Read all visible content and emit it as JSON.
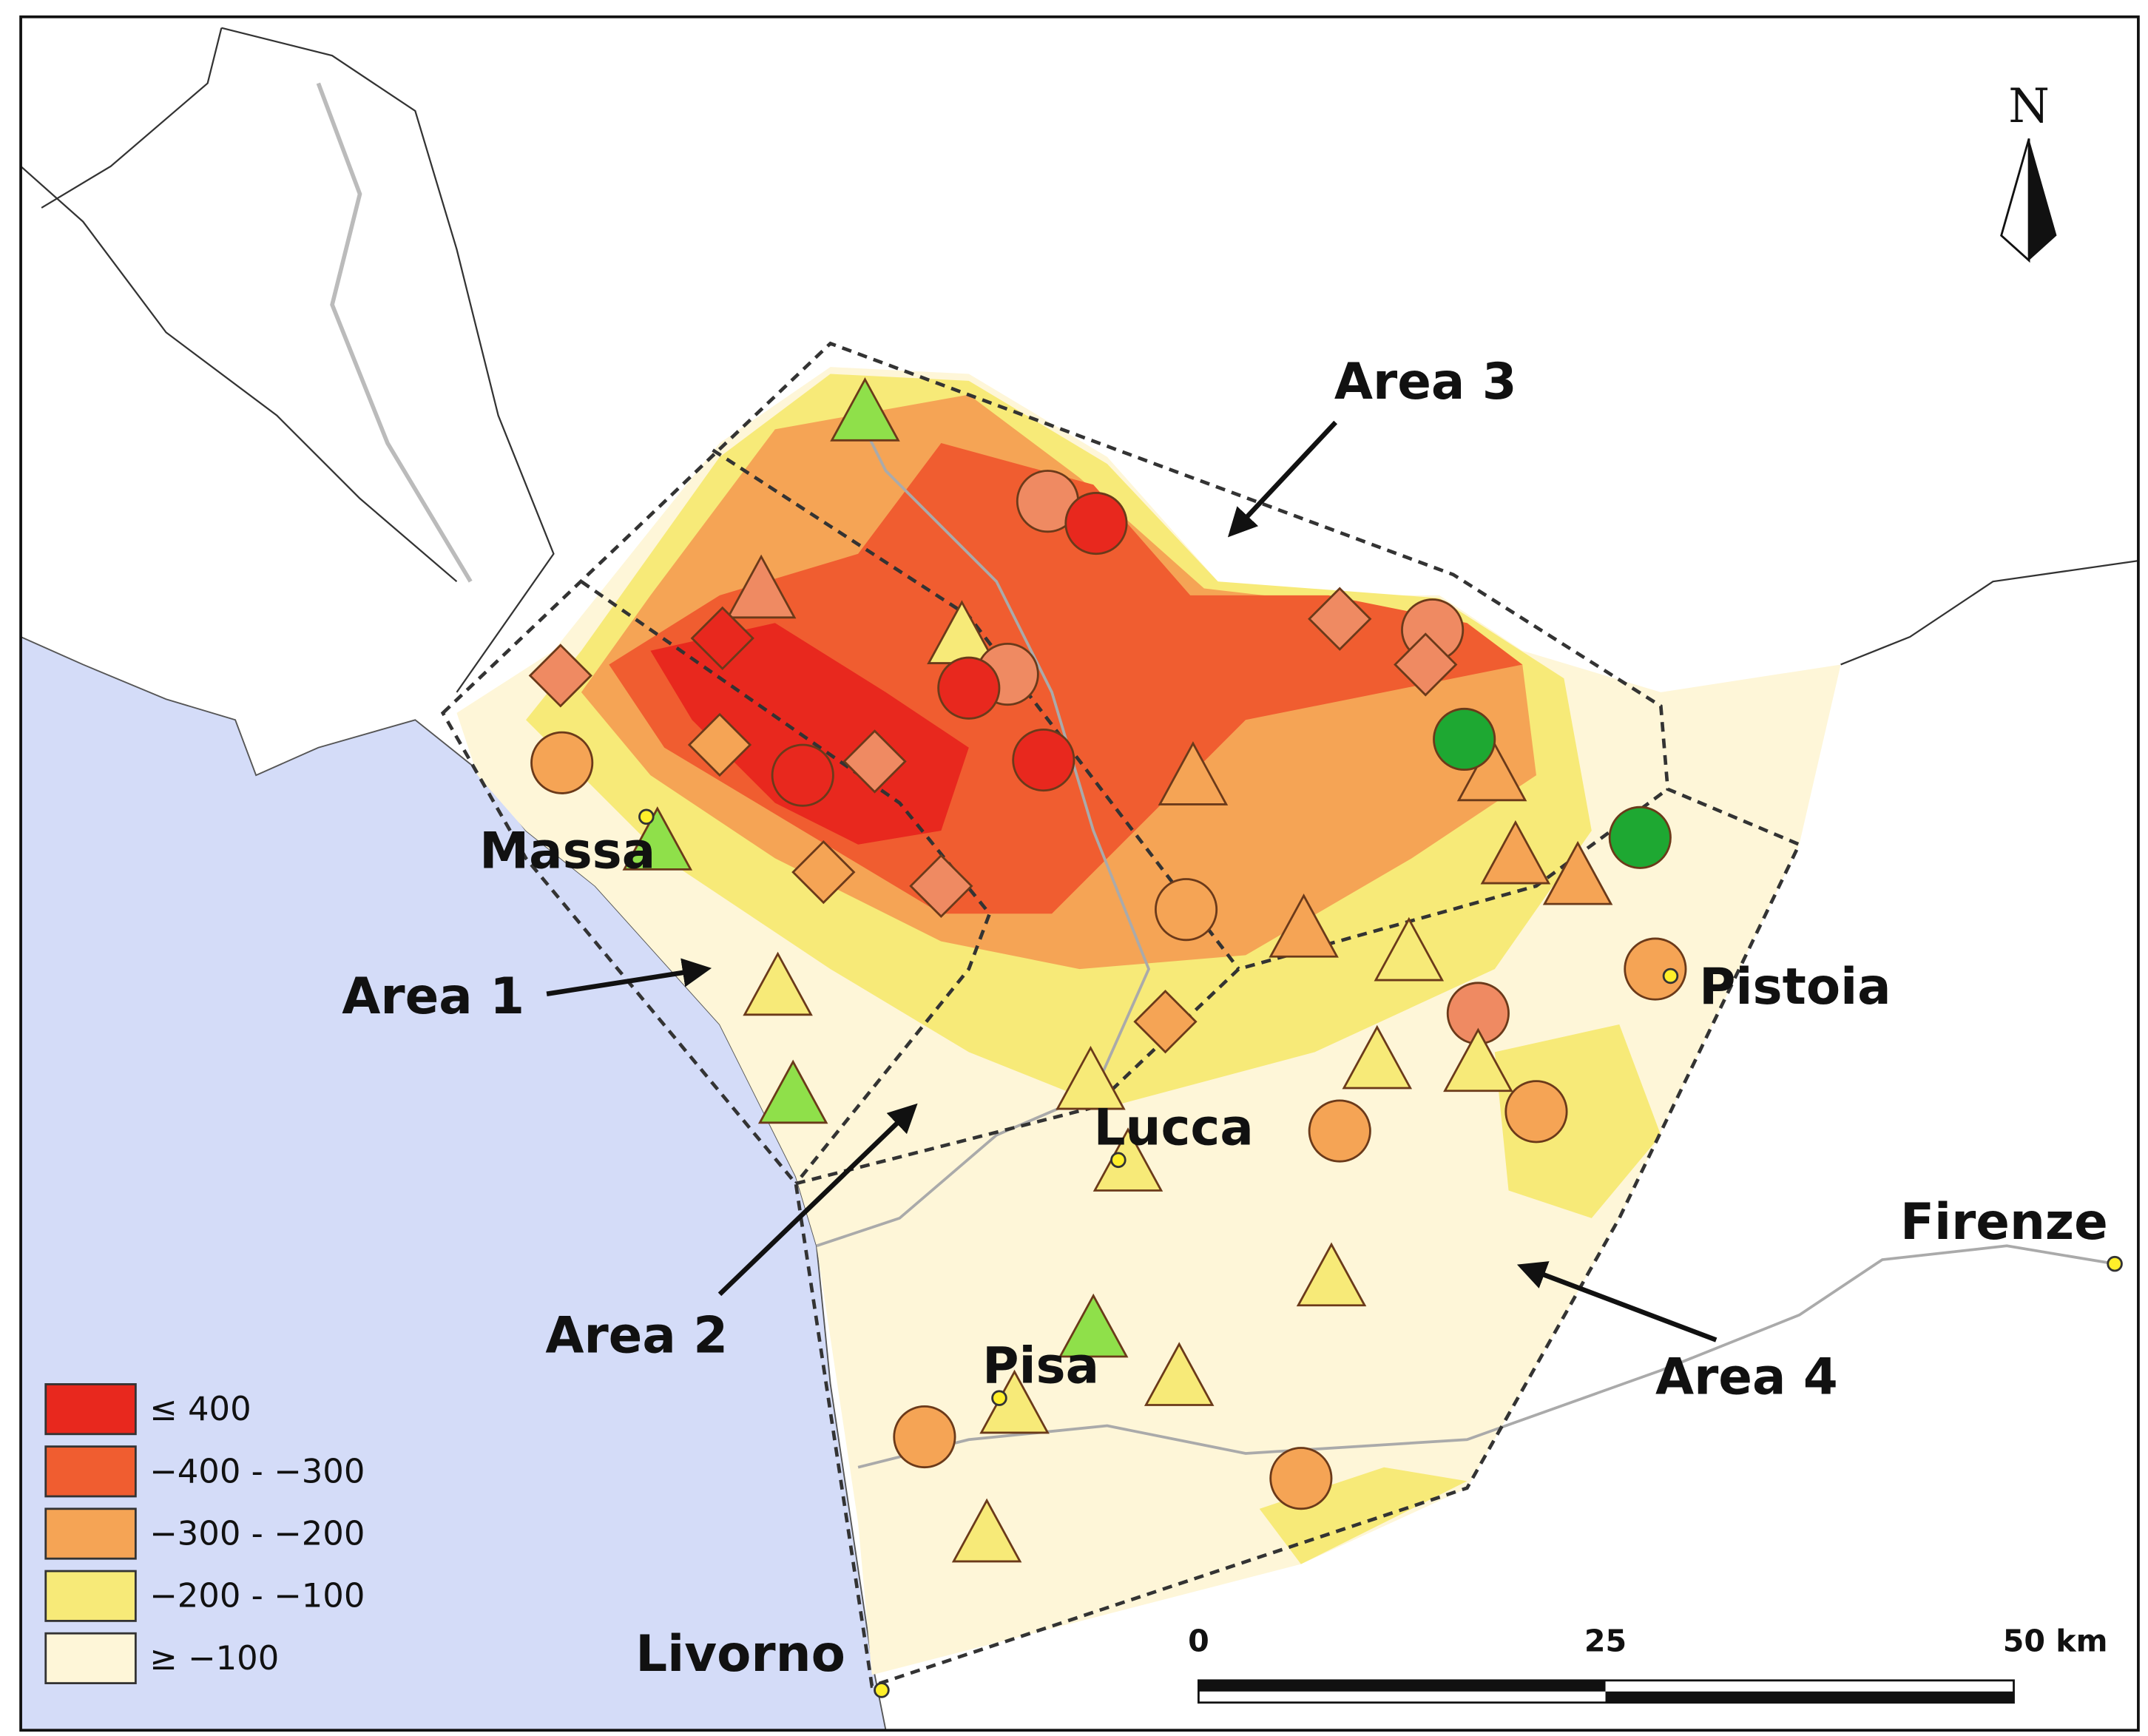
{
  "north": "N",
  "areas": [
    "Area 1",
    "Area 2",
    "Area 3",
    "Area 4"
  ],
  "cities": [
    "Massa",
    "Lucca",
    "Pistoia",
    "Firenze",
    "Pisa",
    "Livorno"
  ],
  "legend": [
    {
      "label": "≤ 400",
      "color": "#e8281e"
    },
    {
      "label": "−400 - −300",
      "color": "#f05d30"
    },
    {
      "label": "−300 - −200",
      "color": "#f5a455"
    },
    {
      "label": "−200 - −100",
      "color": "#f7ea78"
    },
    {
      "label": "≥ −100",
      "color": "#fef6d8"
    }
  ],
  "scale": [
    "0",
    "25",
    "50 km"
  ]
}
